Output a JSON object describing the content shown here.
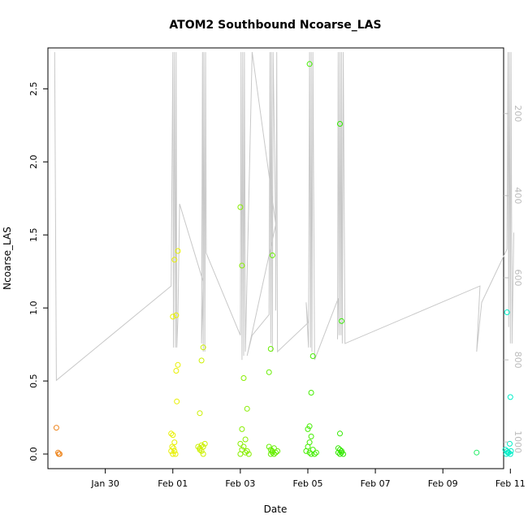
{
  "chart_data": {
    "type": "scatter",
    "title": "ATOM2 Southbound Ncoarse_LAS",
    "xlabel": "Date",
    "ylabel": "Ncoarse_LAS",
    "xlim": [
      28.3,
      41.8
    ],
    "ylim": [
      -0.1,
      2.78
    ],
    "x_unit": "day of year (Jan 28 = 28, Feb 01 = 32)",
    "x_ticks": [
      {
        "value": 30,
        "label": "Jan 30"
      },
      {
        "value": 32,
        "label": "Feb 01"
      },
      {
        "value": 34,
        "label": "Feb 03"
      },
      {
        "value": 36,
        "label": "Feb 05"
      },
      {
        "value": 38,
        "label": "Feb 07"
      },
      {
        "value": 40,
        "label": "Feb 09"
      },
      {
        "value": 42,
        "label": "Feb 11"
      }
    ],
    "y_ticks": [
      {
        "value": 0.0,
        "label": "0.0"
      },
      {
        "value": 0.5,
        "label": "0.5"
      },
      {
        "value": 1.0,
        "label": "1.0"
      },
      {
        "value": 1.5,
        "label": "1.5"
      },
      {
        "value": 2.0,
        "label": "2.0"
      },
      {
        "value": 2.5,
        "label": "2.5"
      }
    ],
    "right_axis": {
      "reversed": true,
      "ylim": [
        40,
        1065
      ],
      "ticks": [
        {
          "value": 200,
          "label": "200"
        },
        {
          "value": 400,
          "label": "400"
        },
        {
          "value": 600,
          "label": "600"
        },
        {
          "value": 800,
          "label": "800"
        },
        {
          "value": 1000,
          "label": "1000"
        }
      ]
    },
    "grid": false,
    "legend": "none",
    "point_series": [
      {
        "color": "#ee8822",
        "points": [
          [
            28.55,
            0.18
          ],
          [
            28.6,
            0.01
          ],
          [
            28.62,
            0.0
          ],
          [
            28.65,
            0.0
          ]
        ]
      },
      {
        "color": "#e8f000",
        "points": [
          [
            32.0,
            0.94
          ],
          [
            32.05,
            1.33
          ],
          [
            32.1,
            0.95
          ],
          [
            32.15,
            1.39
          ],
          [
            32.1,
            0.57
          ],
          [
            32.15,
            0.61
          ],
          [
            32.12,
            0.36
          ],
          [
            31.95,
            0.14
          ],
          [
            32.0,
            0.13
          ],
          [
            32.05,
            0.08
          ],
          [
            31.98,
            0.05
          ],
          [
            32.02,
            0.04
          ],
          [
            32.05,
            0.02
          ],
          [
            32.08,
            0.0
          ],
          [
            32.0,
            0.0
          ],
          [
            31.95,
            0.02
          ]
        ]
      },
      {
        "color": "#ccf000",
        "points": [
          [
            32.9,
            0.73
          ],
          [
            32.85,
            0.64
          ],
          [
            32.8,
            0.28
          ],
          [
            32.75,
            0.05
          ],
          [
            32.8,
            0.04
          ],
          [
            32.85,
            0.06
          ],
          [
            32.9,
            0.05
          ],
          [
            32.95,
            0.07
          ],
          [
            32.85,
            0.02
          ],
          [
            32.9,
            0.0
          ],
          [
            32.8,
            0.03
          ]
        ]
      },
      {
        "color": "#88ee00",
        "points": [
          [
            34.0,
            1.69
          ],
          [
            34.05,
            1.29
          ],
          [
            34.1,
            0.52
          ],
          [
            34.2,
            0.31
          ],
          [
            34.05,
            0.17
          ],
          [
            34.15,
            0.1
          ],
          [
            34.0,
            0.07
          ],
          [
            34.1,
            0.05
          ],
          [
            34.05,
            0.03
          ],
          [
            34.15,
            0.01
          ],
          [
            34.0,
            0.0
          ],
          [
            34.2,
            0.02
          ],
          [
            34.25,
            0.0
          ]
        ]
      },
      {
        "color": "#66ee00",
        "points": [
          [
            34.95,
            1.36
          ],
          [
            34.9,
            0.72
          ],
          [
            34.85,
            0.56
          ],
          [
            34.85,
            0.05
          ],
          [
            34.9,
            0.03
          ],
          [
            34.95,
            0.02
          ],
          [
            35.0,
            0.04
          ],
          [
            35.05,
            0.01
          ],
          [
            34.9,
            0.0
          ],
          [
            35.0,
            0.0
          ],
          [
            34.95,
            0.01
          ],
          [
            35.1,
            0.02
          ]
        ]
      },
      {
        "color": "#44ee00",
        "points": [
          [
            36.05,
            2.67
          ],
          [
            36.15,
            0.67
          ],
          [
            36.1,
            0.42
          ],
          [
            36.05,
            0.19
          ],
          [
            36.0,
            0.17
          ],
          [
            36.1,
            0.12
          ],
          [
            36.05,
            0.08
          ],
          [
            36.0,
            0.05
          ],
          [
            36.15,
            0.03
          ],
          [
            36.05,
            0.01
          ],
          [
            36.2,
            0.0
          ],
          [
            36.1,
            0.0
          ],
          [
            36.25,
            0.01
          ],
          [
            35.95,
            0.02
          ]
        ]
      },
      {
        "color": "#33e800",
        "points": [
          [
            36.95,
            2.26
          ],
          [
            37.0,
            0.91
          ],
          [
            36.95,
            0.14
          ],
          [
            36.9,
            0.04
          ],
          [
            36.95,
            0.03
          ],
          [
            37.0,
            0.02
          ],
          [
            36.9,
            0.01
          ],
          [
            37.05,
            0.0
          ],
          [
            36.95,
            0.0
          ],
          [
            37.0,
            0.01
          ]
        ]
      },
      {
        "color": "#22ee66",
        "points": [
          [
            41.0,
            0.01
          ]
        ]
      },
      {
        "color": "#00eec8",
        "points": [
          [
            41.9,
            0.97
          ],
          [
            42.0,
            0.39
          ],
          [
            41.98,
            0.07
          ],
          [
            41.85,
            0.03
          ],
          [
            41.9,
            0.02
          ],
          [
            41.95,
            0.01
          ],
          [
            42.0,
            0.0
          ],
          [
            41.88,
            0.0
          ],
          [
            42.02,
            0.02
          ],
          [
            41.92,
            0.01
          ]
        ]
      }
    ],
    "pressure_trace": [
      [
        28.5,
        50
      ],
      [
        28.55,
        850
      ],
      [
        31.95,
        620
      ],
      [
        32.0,
        50
      ],
      [
        32.02,
        770
      ],
      [
        32.05,
        50
      ],
      [
        32.08,
        770
      ],
      [
        32.1,
        50
      ],
      [
        32.12,
        770
      ],
      [
        32.15,
        700
      ],
      [
        32.2,
        420
      ],
      [
        32.9,
        610
      ],
      [
        32.85,
        760
      ],
      [
        32.88,
        50
      ],
      [
        32.9,
        780
      ],
      [
        32.92,
        50
      ],
      [
        32.95,
        780
      ],
      [
        32.97,
        50
      ],
      [
        32.99,
        540
      ],
      [
        34.0,
        740
      ],
      [
        34.02,
        50
      ],
      [
        34.05,
        800
      ],
      [
        34.07,
        50
      ],
      [
        34.1,
        790
      ],
      [
        34.12,
        50
      ],
      [
        34.15,
        780
      ],
      [
        34.35,
        50
      ],
      [
        35.05,
        470
      ],
      [
        34.2,
        790
      ],
      [
        34.35,
        740
      ],
      [
        34.85,
        690
      ],
      [
        34.88,
        50
      ],
      [
        34.9,
        760
      ],
      [
        34.92,
        50
      ],
      [
        34.95,
        780
      ],
      [
        34.97,
        50
      ],
      [
        35.05,
        500
      ],
      [
        35.05,
        680
      ],
      [
        35.08,
        50
      ],
      [
        35.1,
        780
      ],
      [
        36.0,
        710
      ],
      [
        35.95,
        660
      ],
      [
        36.02,
        770
      ],
      [
        36.05,
        50
      ],
      [
        36.08,
        770
      ],
      [
        36.1,
        50
      ],
      [
        36.12,
        780
      ],
      [
        36.15,
        50
      ],
      [
        36.2,
        800
      ],
      [
        36.9,
        650
      ],
      [
        36.88,
        750
      ],
      [
        36.9,
        50
      ],
      [
        36.93,
        740
      ],
      [
        36.95,
        50
      ],
      [
        36.98,
        740
      ],
      [
        37.0,
        50
      ],
      [
        37.02,
        760
      ],
      [
        37.05,
        50
      ],
      [
        37.1,
        760
      ],
      [
        41.1,
        620
      ],
      [
        41.0,
        780
      ],
      [
        41.15,
        660
      ],
      [
        41.9,
        530
      ],
      [
        41.93,
        50
      ],
      [
        41.95,
        720
      ],
      [
        41.97,
        50
      ],
      [
        42.0,
        760
      ],
      [
        42.02,
        50
      ],
      [
        42.05,
        760
      ],
      [
        42.1,
        490
      ]
    ]
  }
}
